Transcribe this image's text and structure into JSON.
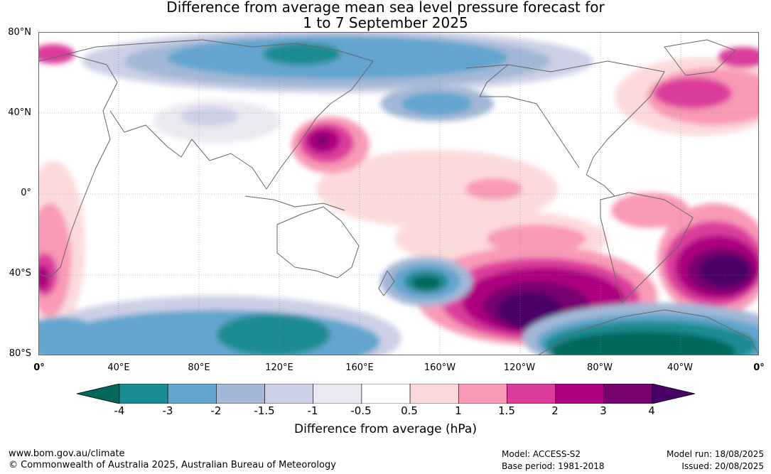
{
  "title": {
    "line1": "Difference from average mean sea level pressure forecast for",
    "line2": "1 to 7 September 2025"
  },
  "map": {
    "lat_labels": [
      "80°N",
      "40°N",
      "0°",
      "40°S",
      "80°S"
    ],
    "lon_labels": [
      "0°",
      "40°E",
      "80°E",
      "120°E",
      "160°E",
      "160°W",
      "120°W",
      "80°W",
      "40°W",
      "0°"
    ],
    "lon_range": [
      0,
      360
    ],
    "lat_range": [
      -80,
      80
    ]
  },
  "colorbar": {
    "ticks": [
      "-4",
      "-3",
      "-2",
      "-1.5",
      "-1",
      "-0.5",
      "0.5",
      "1",
      "1.5",
      "2",
      "3",
      "4"
    ],
    "colors": [
      "#1a8c94",
      "#63a5cf",
      "#a2b8d6",
      "#ccd0e6",
      "#ece8f1",
      "#ffffff",
      "#fddada",
      "#f89ab6",
      "#dc3c9c",
      "#ad0080",
      "#78006f"
    ],
    "under_color": "#00695c",
    "over_color": "#4a0069",
    "label": "Difference from average (hPa)"
  },
  "footer": {
    "url": "www.bom.gov.au/climate",
    "copyright": "© Commonwealth of Australia 2025, Australian Bureau of Meteorology",
    "model": "Model: ACCESS-S2",
    "base_period": "Base period: 1981-2018",
    "model_run": "Model run: 18/08/2025",
    "issued": "Issued: 20/08/2025"
  }
}
